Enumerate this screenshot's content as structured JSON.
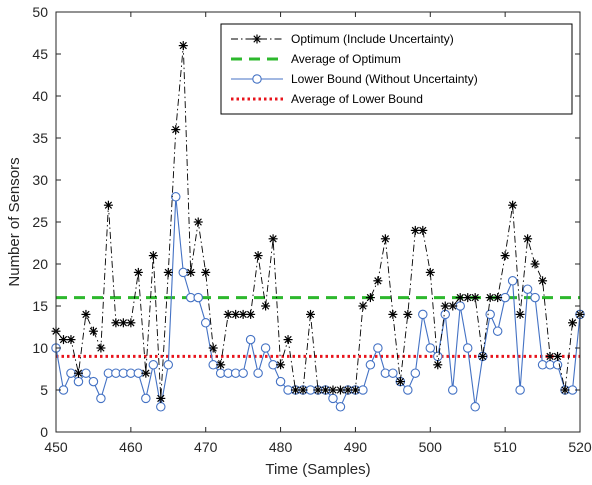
{
  "chart_data": {
    "type": "line",
    "xlabel": "Time (Samples)",
    "ylabel": "Number of Sensors",
    "xlim": [
      450,
      520
    ],
    "ylim": [
      0,
      50
    ],
    "xticks": [
      450,
      460,
      470,
      480,
      490,
      500,
      510,
      520
    ],
    "yticks": [
      0,
      5,
      10,
      15,
      20,
      25,
      30,
      35,
      40,
      45,
      50
    ],
    "grid": false,
    "legend_position": "top-right",
    "series": [
      {
        "name": "Optimum (Include Uncertainty)",
        "style": "dashdot",
        "marker": "asterisk",
        "color": "#000000",
        "x": [
          450,
          451,
          452,
          453,
          454,
          455,
          456,
          457,
          458,
          459,
          460,
          461,
          462,
          463,
          464,
          465,
          466,
          467,
          468,
          469,
          470,
          471,
          472,
          473,
          474,
          475,
          476,
          477,
          478,
          479,
          480,
          481,
          482,
          483,
          484,
          485,
          486,
          487,
          488,
          489,
          490,
          491,
          492,
          493,
          494,
          495,
          496,
          497,
          498,
          499,
          500,
          501,
          502,
          503,
          504,
          505,
          506,
          507,
          508,
          509,
          510,
          511,
          512,
          513,
          514,
          515,
          516,
          517,
          518,
          519,
          520
        ],
        "values": [
          12,
          11,
          11,
          7,
          14,
          12,
          10,
          27,
          13,
          13,
          13,
          19,
          7,
          21,
          4,
          19,
          36,
          46,
          19,
          25,
          19,
          10,
          8,
          14,
          14,
          14,
          14,
          21,
          15,
          23,
          8,
          11,
          5,
          5,
          14,
          5,
          5,
          5,
          5,
          5,
          5,
          15,
          16,
          18,
          23,
          14,
          6,
          14,
          24,
          24,
          19,
          8,
          15,
          15,
          16,
          16,
          16,
          9,
          16,
          16,
          21,
          27,
          14,
          23,
          20,
          18,
          9,
          9,
          5,
          13,
          14
        ]
      },
      {
        "name": "Average of Optimum",
        "style": "dashed",
        "color": "#2db82d",
        "constant": 16
      },
      {
        "name": "Lower Bound (Without Uncertainty)",
        "style": "solid",
        "marker": "circle",
        "color": "#4472c4",
        "x": [
          450,
          451,
          452,
          453,
          454,
          455,
          456,
          457,
          458,
          459,
          460,
          461,
          462,
          463,
          464,
          465,
          466,
          467,
          468,
          469,
          470,
          471,
          472,
          473,
          474,
          475,
          476,
          477,
          478,
          479,
          480,
          481,
          482,
          483,
          484,
          485,
          486,
          487,
          488,
          489,
          490,
          491,
          492,
          493,
          494,
          495,
          496,
          497,
          498,
          499,
          500,
          501,
          502,
          503,
          504,
          505,
          506,
          507,
          508,
          509,
          510,
          511,
          512,
          513,
          514,
          515,
          516,
          517,
          518,
          519,
          520
        ],
        "values": [
          10,
          5,
          7,
          6,
          7,
          6,
          4,
          7,
          7,
          7,
          7,
          7,
          4,
          8,
          3,
          8,
          28,
          19,
          16,
          16,
          13,
          8,
          7,
          7,
          7,
          7,
          11,
          7,
          10,
          8,
          6,
          5,
          5,
          5,
          5,
          5,
          5,
          4,
          3,
          5,
          5,
          5,
          8,
          10,
          7,
          7,
          6,
          5,
          7,
          14,
          10,
          9,
          14,
          5,
          15,
          10,
          3,
          9,
          14,
          12,
          16,
          18,
          5,
          17,
          16,
          8,
          8,
          8,
          5,
          5,
          14
        ]
      },
      {
        "name": "Average of Lower Bound",
        "style": "dotted",
        "color": "#e8141c",
        "constant": 9
      }
    ]
  }
}
